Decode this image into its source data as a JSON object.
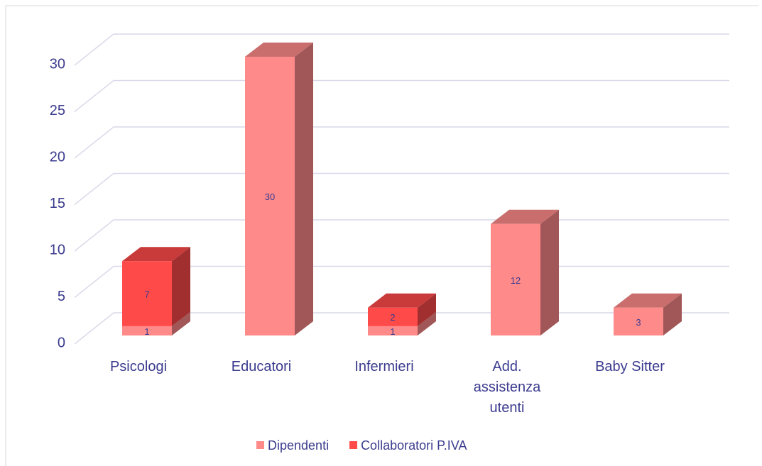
{
  "chart_data": {
    "type": "bar3d_stacked",
    "categories": [
      "Psicologi",
      "Educatori",
      "Infermieri",
      "Add. assistenza utenti",
      "Baby Sitter"
    ],
    "series": [
      {
        "name": "Dipendenti",
        "color": "#ff8a8a",
        "values": [
          1,
          30,
          1,
          12,
          3
        ]
      },
      {
        "name": "Collaboratori P.IVA",
        "color": "#ff4a4a",
        "values": [
          7,
          null,
          2,
          null,
          null
        ]
      }
    ],
    "ylim": [
      0,
      30
    ],
    "yticks": [
      0,
      5,
      10,
      15,
      20,
      25,
      30
    ],
    "grid": true,
    "legend": "bottom"
  }
}
